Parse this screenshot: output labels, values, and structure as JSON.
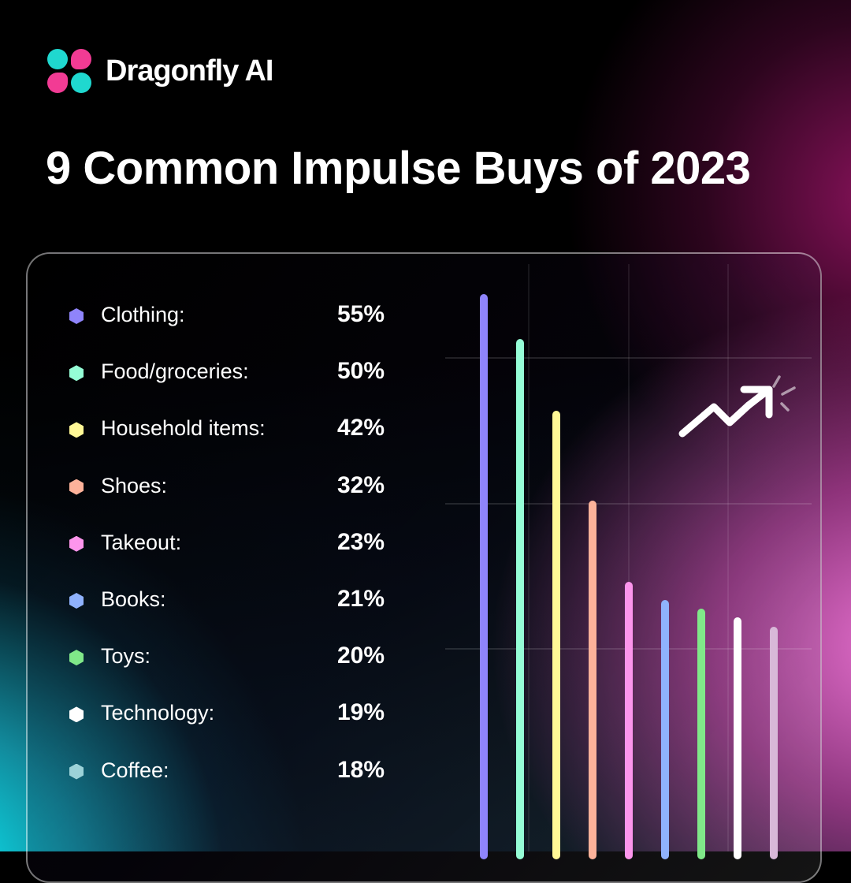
{
  "brand": {
    "name": "Dragonfly AI",
    "logo_colors": [
      "#1fd8cf",
      "#f23b94"
    ]
  },
  "title": "9 Common Impulse Buys of 2023",
  "legend": [
    {
      "label": "Clothing:",
      "value": "55%",
      "color": "#8f84fb"
    },
    {
      "label": "Food/groceries:",
      "value": "50%",
      "color": "#95fdd6"
    },
    {
      "label": "Household items:",
      "value": "42%",
      "color": "#fff896"
    },
    {
      "label": "Shoes:",
      "value": "32%",
      "color": "#fdb29a"
    },
    {
      "label": "Takeout:",
      "value": "23%",
      "color": "#fc95ec"
    },
    {
      "label": "Books:",
      "value": "21%",
      "color": "#8fb2fd"
    },
    {
      "label": "Toys:",
      "value": "20%",
      "color": "#80e889"
    },
    {
      "label": "Technology:",
      "value": "19%",
      "color": "#ffffff"
    },
    {
      "label": "Coffee:",
      "value": "18%",
      "color": "#9cd2d8"
    }
  ],
  "icons": {
    "trend": "trending-up-arrow"
  },
  "chart_data": {
    "type": "bar",
    "title": "9 Common Impulse Buys of 2023",
    "categories": [
      "Clothing",
      "Food/groceries",
      "Household items",
      "Shoes",
      "Takeout",
      "Books",
      "Toys",
      "Technology",
      "Coffee"
    ],
    "values": [
      55,
      50,
      42,
      32,
      23,
      21,
      20,
      19,
      18
    ],
    "colors": [
      "#8f84fb",
      "#95fdd6",
      "#fff896",
      "#fdb29a",
      "#fc95ec",
      "#8fb2fd",
      "#80e889",
      "#ffffff",
      "#d8b8d8"
    ],
    "unit": "%",
    "xlabel": "",
    "ylabel": "",
    "orientation": "vertical",
    "grid": true,
    "legend_position": "left"
  }
}
